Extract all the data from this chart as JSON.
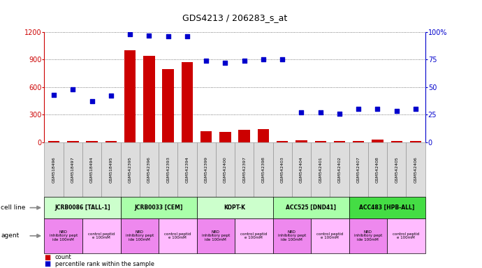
{
  "title": "GDS4213 / 206283_s_at",
  "samples": [
    "GSM518496",
    "GSM518497",
    "GSM518494",
    "GSM518495",
    "GSM542395",
    "GSM542396",
    "GSM542393",
    "GSM542394",
    "GSM542399",
    "GSM542400",
    "GSM542397",
    "GSM542398",
    "GSM542403",
    "GSM542404",
    "GSM542401",
    "GSM542402",
    "GSM542407",
    "GSM542408",
    "GSM542405",
    "GSM542406"
  ],
  "counts": [
    8,
    8,
    8,
    8,
    1000,
    940,
    800,
    870,
    120,
    110,
    130,
    140,
    8,
    20,
    8,
    8,
    8,
    30,
    8,
    8
  ],
  "percentiles": [
    43,
    48,
    37,
    42,
    98,
    97,
    96,
    96,
    74,
    72,
    74,
    75,
    75,
    27,
    27,
    26,
    30,
    30,
    28,
    30
  ],
  "cell_lines": [
    {
      "label": "JCRB0086 [TALL-1]",
      "start": 0,
      "end": 4,
      "color": "#ccffcc"
    },
    {
      "label": "JCRB0033 [CEM]",
      "start": 4,
      "end": 8,
      "color": "#aaffaa"
    },
    {
      "label": "KOPT-K",
      "start": 8,
      "end": 12,
      "color": "#ccffcc"
    },
    {
      "label": "ACC525 [DND41]",
      "start": 12,
      "end": 16,
      "color": "#aaffaa"
    },
    {
      "label": "ACC483 [HPB-ALL]",
      "start": 16,
      "end": 20,
      "color": "#44dd44"
    }
  ],
  "agents": [
    {
      "label": "NBD\ninhibitory pept\nide 100mM",
      "start": 0,
      "end": 2,
      "color": "#ee88ee"
    },
    {
      "label": "control peptid\ne 100mM",
      "start": 2,
      "end": 4,
      "color": "#ffbbff"
    },
    {
      "label": "NBD\ninhibitory pept\nide 100mM",
      "start": 4,
      "end": 6,
      "color": "#ee88ee"
    },
    {
      "label": "control peptid\ne 100mM",
      "start": 6,
      "end": 8,
      "color": "#ffbbff"
    },
    {
      "label": "NBD\ninhibitory pept\nide 100mM",
      "start": 8,
      "end": 10,
      "color": "#ee88ee"
    },
    {
      "label": "control peptid\ne 100mM",
      "start": 10,
      "end": 12,
      "color": "#ffbbff"
    },
    {
      "label": "NBD\ninhibitory pept\nide 100mM",
      "start": 12,
      "end": 14,
      "color": "#ee88ee"
    },
    {
      "label": "control peptid\ne 100mM",
      "start": 14,
      "end": 16,
      "color": "#ffbbff"
    },
    {
      "label": "NBD\ninhibitory pept\nide 100mM",
      "start": 16,
      "end": 18,
      "color": "#ee88ee"
    },
    {
      "label": "control peptid\ne 100mM",
      "start": 18,
      "end": 20,
      "color": "#ffbbff"
    }
  ],
  "bar_color": "#cc0000",
  "dot_color": "#0000cc",
  "ylim_left": [
    0,
    1200
  ],
  "ylim_right": [
    0,
    100
  ],
  "yticks_left": [
    0,
    300,
    600,
    900,
    1200
  ],
  "yticks_right": [
    0,
    25,
    50,
    75,
    100
  ],
  "background_color": "#ffffff",
  "grid_color": "#555555"
}
